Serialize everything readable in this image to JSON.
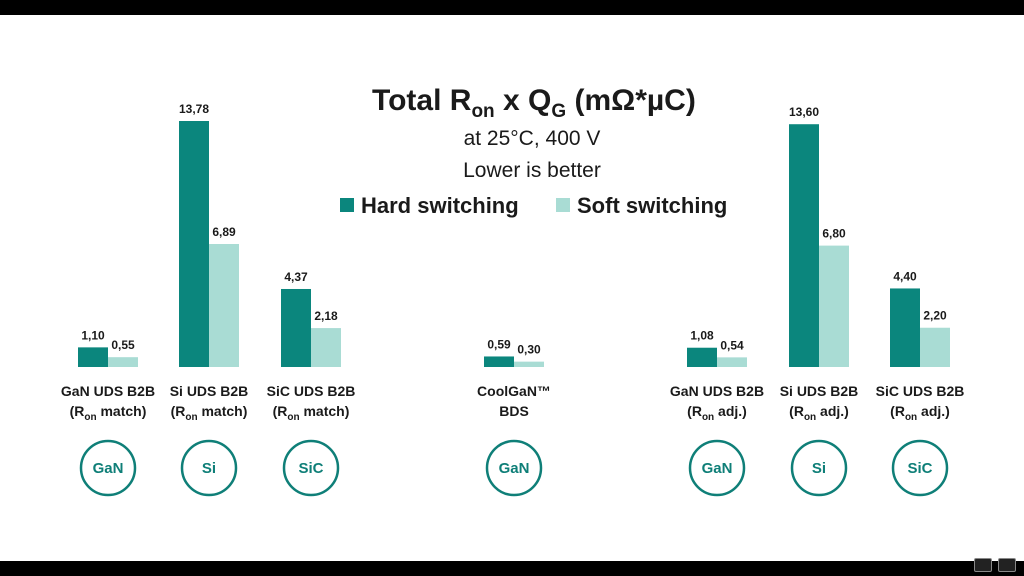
{
  "chart_data": {
    "type": "bar",
    "title": "Total R",
    "title_sub1": "on",
    "title_mid": " x Q",
    "title_sub2": "G",
    "title_end": " (mΩ*µC)",
    "subtitle_1": "at 25°C, 400 V",
    "subtitle_2": "Lower is better",
    "series": [
      {
        "name": "Hard switching",
        "color": "#0b867d",
        "values": [
          1.1,
          13.78,
          4.37,
          0.59,
          1.08,
          13.6,
          4.4
        ]
      },
      {
        "name": "Soft switching",
        "color": "#a9dcd4",
        "values": [
          0.55,
          6.89,
          2.18,
          0.3,
          0.54,
          6.8,
          2.2
        ]
      }
    ],
    "value_labels": {
      "hard": [
        "1,10",
        "13,78",
        "4,37",
        "0,59",
        "1,08",
        "13,60",
        "4,40"
      ],
      "soft": [
        "0,55",
        "6,89",
        "2,18",
        "0,30",
        "0,54",
        "6,80",
        "2,20"
      ]
    },
    "categories": [
      {
        "line1": "GaN UDS B2B",
        "line2_pre": "(R",
        "line2_sub": "on",
        "line2_post": " match)",
        "badge": "GaN"
      },
      {
        "line1": "Si UDS B2B",
        "line2_pre": "(R",
        "line2_sub": "on",
        "line2_post": " match)",
        "badge": "Si"
      },
      {
        "line1": "SiC UDS B2B",
        "line2_pre": "(R",
        "line2_sub": "on",
        "line2_post": " match)",
        "badge": "SiC"
      },
      {
        "line1": "CoolGaN™",
        "line2_pre": "BDS",
        "line2_sub": "",
        "line2_post": "",
        "badge": "GaN"
      },
      {
        "line1": "GaN UDS B2B",
        "line2_pre": "(R",
        "line2_sub": "on",
        "line2_post": " adj.)",
        "badge": "GaN"
      },
      {
        "line1": "Si UDS B2B",
        "line2_pre": "(R",
        "line2_sub": "on",
        "line2_post": " adj.)",
        "badge": "Si"
      },
      {
        "line1": "SiC UDS B2B",
        "line2_pre": "(R",
        "line2_sub": "on",
        "line2_post": " adj.)",
        "badge": "SiC"
      }
    ],
    "ylim": [
      0,
      13.78
    ],
    "legend_position": "top-center",
    "grid": false
  }
}
